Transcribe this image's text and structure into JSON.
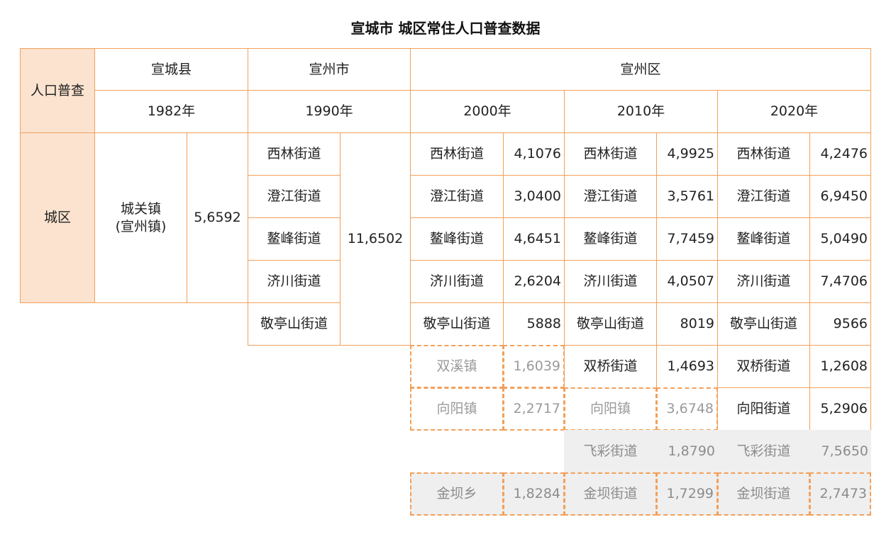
{
  "title": "宣城市 城区常住人口普查数据",
  "header": {
    "corner": "人口普查",
    "regions": [
      "宣城县",
      "宣州市",
      "宣州区"
    ],
    "years": [
      "1982年",
      "1990年",
      "2000年",
      "2010年",
      "2020年"
    ],
    "row_label": "城区"
  },
  "y1982": {
    "unit": "城关镇\n(宣州镇)",
    "value": "5,6592"
  },
  "y1990": {
    "streets": [
      "西林街道",
      "澄江街道",
      "鳌峰街道",
      "济川街道",
      "敬亭山街道"
    ],
    "total": "11,6502"
  },
  "y2000": {
    "rows": [
      {
        "name": "西林街道",
        "value": "4,1076"
      },
      {
        "name": "澄江街道",
        "value": "3,0400"
      },
      {
        "name": "鳌峰街道",
        "value": "4,6451"
      },
      {
        "name": "济川街道",
        "value": "2,6204"
      },
      {
        "name": "敬亭山街道",
        "value": "5888"
      },
      {
        "name": "双溪镇",
        "value": "1,6039"
      },
      {
        "name": "向阳镇",
        "value": "2,2717"
      },
      {
        "name": "金坝乡",
        "value": "1,8284"
      }
    ]
  },
  "y2010": {
    "rows": [
      {
        "name": "西林街道",
        "value": "4,9925"
      },
      {
        "name": "澄江街道",
        "value": "3,5761"
      },
      {
        "name": "鳌峰街道",
        "value": "7,7459"
      },
      {
        "name": "济川街道",
        "value": "4,0507"
      },
      {
        "name": "敬亭山街道",
        "value": "8019"
      },
      {
        "name": "双桥街道",
        "value": "1,4693"
      },
      {
        "name": "向阳镇",
        "value": "3,6748"
      },
      {
        "name": "飞彩街道",
        "value": "1,8790"
      },
      {
        "name": "金坝街道",
        "value": "1,7299"
      }
    ]
  },
  "y2020": {
    "rows": [
      {
        "name": "西林街道",
        "value": "4,2476"
      },
      {
        "name": "澄江街道",
        "value": "6,9450"
      },
      {
        "name": "鳌峰街道",
        "value": "5,0490"
      },
      {
        "name": "济川街道",
        "value": "7,4706"
      },
      {
        "name": "敬亭山街道",
        "value": "9566"
      },
      {
        "name": "双桥街道",
        "value": "1,2608"
      },
      {
        "name": "向阳街道",
        "value": "5,2906"
      },
      {
        "name": "飞彩街道",
        "value": "7,5650"
      },
      {
        "name": "金坝街道",
        "value": "2,7473"
      }
    ]
  },
  "colors": {
    "border": "#f2a05a",
    "header_fill": "#fbe3cf",
    "gray_fill": "#efefef",
    "gray_text": "#8c8c8c"
  }
}
